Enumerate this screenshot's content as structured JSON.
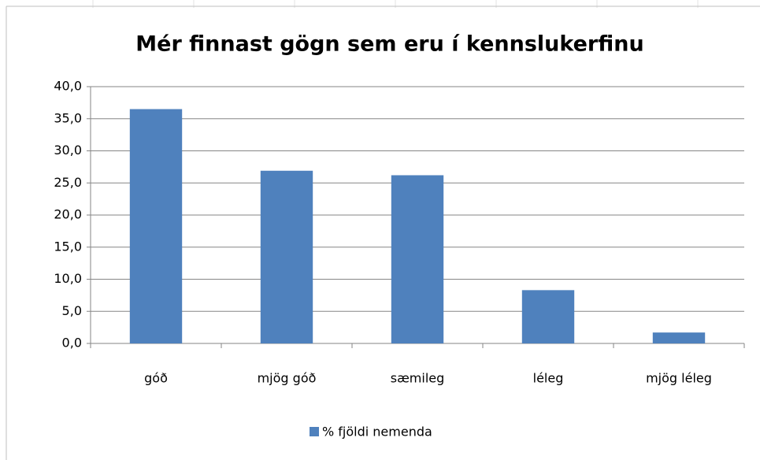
{
  "chart_data": {
    "type": "bar",
    "title": "Mér finnast gögn sem eru í kennslukerfinu",
    "categories": [
      "góð",
      "mjög góð",
      "sæmileg",
      "léleg",
      "mjög léleg"
    ],
    "series": [
      {
        "name": "% fjöldi nemenda",
        "color": "#4f81bd",
        "values": [
          36.5,
          26.9,
          26.2,
          8.3,
          1.7
        ]
      }
    ],
    "ylim": [
      0,
      40
    ],
    "yticks": [
      {
        "value": 0,
        "label": "0,0"
      },
      {
        "value": 5,
        "label": "5,0"
      },
      {
        "value": 10,
        "label": "10,0"
      },
      {
        "value": 15,
        "label": "15,0"
      },
      {
        "value": 20,
        "label": "20,0"
      },
      {
        "value": 25,
        "label": "25,0"
      },
      {
        "value": 30,
        "label": "30,0"
      },
      {
        "value": 35,
        "label": "35,0"
      },
      {
        "value": 40,
        "label": "40,0"
      }
    ],
    "grid": true,
    "legend": "bottom"
  }
}
